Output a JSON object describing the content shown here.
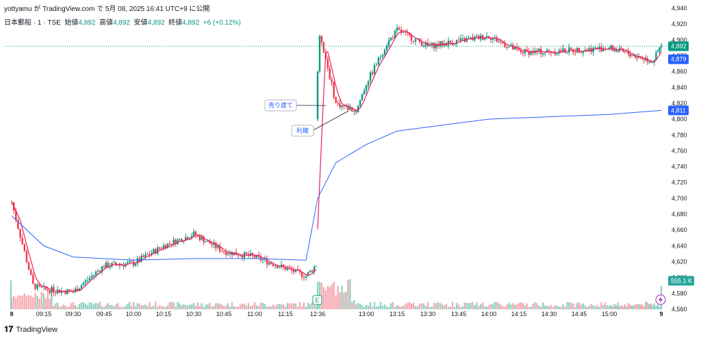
{
  "header": {
    "text": "yottyamu が TradingView.com で 5月 08, 2025 16:41 UTC+9 に公開"
  },
  "legend": {
    "symbol": "日本郵船 · 1 · TSE",
    "open_label": "始値",
    "open": "4,892",
    "high_label": "高値",
    "high": "4,892",
    "low_label": "安値",
    "low": "4,892",
    "close_label": "終値",
    "close": "4,892",
    "change": "+6 (+0.12%)"
  },
  "brand": "TradingView",
  "colors": {
    "up": "#089981",
    "down": "#f23645",
    "vwap": "#2962ff",
    "ma": "#e91e63"
  },
  "chart_data": {
    "type": "candlestick",
    "y_axis": {
      "min": 4560,
      "max": 4940,
      "ticks": [
        4560,
        4580,
        4600,
        4620,
        4640,
        4660,
        4680,
        4700,
        4720,
        4740,
        4760,
        4780,
        4800,
        4820,
        4840,
        4860,
        4880,
        4900,
        4920,
        4940
      ],
      "tick_labels": [
        "4,560",
        "4,580",
        "4,600",
        "4,620",
        "4,640",
        "4,660",
        "4,680",
        "4,700",
        "4,720",
        "4,740",
        "4,760",
        "4,780",
        "4,800",
        "4,820",
        "4,840",
        "4,860",
        "4,880",
        "4,900",
        "4,920",
        "4,940"
      ]
    },
    "x_axis": {
      "labels": [
        "8",
        "09:15",
        "09:30",
        "09:45",
        "10:00",
        "10:15",
        "10:30",
        "10:45",
        "11:00",
        "11:15",
        "12:36",
        "13:00",
        "13:15",
        "13:30",
        "13:45",
        "14:00",
        "14:15",
        "14:30",
        "14:45",
        "15:00",
        "9"
      ]
    },
    "price_tags": [
      {
        "label": "4,892",
        "value": 4892,
        "color": "#089981"
      },
      {
        "label": "4,879",
        "value": 4879,
        "color": "#2962ff"
      },
      {
        "label": "4,811",
        "value": 4811,
        "color": "#2962ff"
      },
      {
        "label": "555.1 K",
        "value": 4596,
        "color": "#26a69a"
      }
    ],
    "current_price": 4892,
    "earnings_marker": "E",
    "annotations": [
      {
        "label": "売り建て",
        "time": "12:40",
        "price": 4800
      },
      {
        "label": "利確",
        "time": "12:51",
        "price": 4810
      }
    ],
    "key_prices": [
      {
        "time": "09:00",
        "open": 4680,
        "high": 4702,
        "low": 4672,
        "close": 4695
      },
      {
        "time": "09:10",
        "price": 4590
      },
      {
        "time": "09:15",
        "price": 4585
      },
      {
        "time": "09:30",
        "price": 4582
      },
      {
        "time": "09:45",
        "price": 4615
      },
      {
        "time": "10:00",
        "price": 4618
      },
      {
        "time": "10:15",
        "price": 4640
      },
      {
        "time": "10:30",
        "price": 4655
      },
      {
        "time": "10:45",
        "price": 4633
      },
      {
        "time": "11:00",
        "price": 4626
      },
      {
        "time": "11:25",
        "price": 4602
      },
      {
        "time": "12:36",
        "price": 4800
      },
      {
        "time": "12:37",
        "price": 4910
      },
      {
        "time": "12:45",
        "price": 4820
      },
      {
        "time": "12:55",
        "price": 4810
      },
      {
        "time": "13:00",
        "price": 4845
      },
      {
        "time": "13:10",
        "price": 4895
      },
      {
        "time": "13:15",
        "price": 4912
      },
      {
        "time": "13:30",
        "price": 4892
      },
      {
        "time": "14:00",
        "price": 4905
      },
      {
        "time": "14:15",
        "price": 4885
      },
      {
        "time": "14:30",
        "price": 4885
      },
      {
        "time": "15:00",
        "price": 4890
      },
      {
        "time": "15:25",
        "price": 4873
      },
      {
        "time": "15:30",
        "price": 4892
      }
    ],
    "vwap": [
      {
        "time": "09:00",
        "value": 4678
      },
      {
        "time": "09:15",
        "value": 4640
      },
      {
        "time": "09:30",
        "value": 4626
      },
      {
        "time": "10:00",
        "value": 4622
      },
      {
        "time": "10:30",
        "value": 4624
      },
      {
        "time": "11:00",
        "value": 4624
      },
      {
        "time": "11:25",
        "value": 4622
      },
      {
        "time": "12:36",
        "value": 4700
      },
      {
        "time": "12:45",
        "value": 4745
      },
      {
        "time": "13:00",
        "value": 4768
      },
      {
        "time": "13:15",
        "value": 4785
      },
      {
        "time": "14:00",
        "value": 4800
      },
      {
        "time": "15:00",
        "value": 4806
      },
      {
        "time": "15:30",
        "value": 4811
      }
    ]
  }
}
